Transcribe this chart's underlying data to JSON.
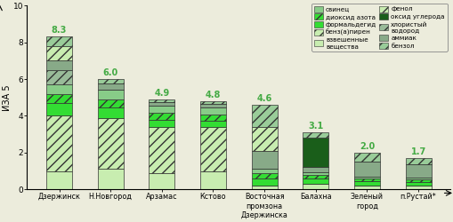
{
  "cities": [
    "Дзержинск",
    "Н.Новгород",
    "Арзамас",
    "Кстово",
    "Восточная\nпромзона\nДзержинска",
    "Балахна",
    "Зеленый\nгород",
    "п.Рустай*"
  ],
  "totals": [
    8.3,
    6.0,
    4.9,
    4.8,
    4.6,
    3.1,
    2.0,
    1.7
  ],
  "segment_order": [
    "взвешенные вещества",
    "бенз(а)пирен",
    "формальдегид",
    "диоксид азота",
    "свинец",
    "хлористый водород",
    "аммиак",
    "оксид углерода",
    "фенол",
    "бензол"
  ],
  "segments": {
    "взвешенные вещества": [
      1.0,
      1.1,
      0.9,
      1.0,
      0.2,
      0.3,
      0.2,
      0.2
    ],
    "бенз(а)пирен": [
      3.0,
      2.8,
      2.5,
      2.4,
      0.0,
      0.0,
      0.0,
      0.0
    ],
    "формальдегид": [
      0.7,
      0.55,
      0.4,
      0.35,
      0.4,
      0.3,
      0.25,
      0.2
    ],
    "диоксид азота": [
      0.5,
      0.45,
      0.35,
      0.3,
      0.3,
      0.2,
      0.15,
      0.15
    ],
    "свинец": [
      0.5,
      0.5,
      0.4,
      0.4,
      0.2,
      0.15,
      0.1,
      0.1
    ],
    "хлористый водород": [
      0.8,
      0.0,
      0.0,
      0.0,
      0.0,
      0.0,
      0.0,
      0.0
    ],
    "аммиак": [
      0.5,
      0.35,
      0.2,
      0.2,
      1.0,
      0.25,
      0.8,
      0.7
    ],
    "оксид углерода": [
      0.0,
      0.0,
      0.0,
      0.0,
      0.0,
      1.6,
      0.0,
      0.0
    ],
    "фенол": [
      0.8,
      0.0,
      0.0,
      0.0,
      1.3,
      0.0,
      0.0,
      0.0
    ],
    "бензол": [
      0.5,
      0.25,
      0.15,
      0.15,
      1.2,
      0.3,
      0.5,
      0.35
    ]
  },
  "colors": {
    "взвешенные вещества": "#c8edb0",
    "бенз(а)пирен": "#c8edb0",
    "формальдегид": "#33dd33",
    "диоксид азота": "#33dd33",
    "свинец": "#88cc88",
    "хлористый водород": "#99bb99",
    "аммиак": "#88aa88",
    "оксид углерода": "#1a5e1a",
    "фенол": "#c8edb0",
    "бензол": "#99cc99"
  },
  "hatches": {
    "взвешенные вещества": "",
    "бенз(а)пирен": "///",
    "формальдегид": "",
    "диоксид азота": "///",
    "свинец": "",
    "хлористый водород": "///",
    "аммиак": "",
    "оксид углерода": "",
    "фенол": "///",
    "бензол": "///"
  },
  "legend_left": [
    {
      "name": "свинец",
      "color": "#88cc88",
      "hatch": ""
    },
    {
      "name": "диоксид азота",
      "color": "#33dd33",
      "hatch": "///"
    },
    {
      "name": "формальдегид",
      "color": "#33dd33",
      "hatch": ""
    },
    {
      "name": "бенз(а)пирен",
      "color": "#c8edb0",
      "hatch": "///"
    },
    {
      "name": "взвешенные\nвещества",
      "color": "#c8edb0",
      "hatch": ""
    }
  ],
  "legend_right": [
    {
      "name": "фенол",
      "color": "#c8edb0",
      "hatch": "///"
    },
    {
      "name": "оксид углерода",
      "color": "#1a5e1a",
      "hatch": ""
    },
    {
      "name": "хлористый\nводород",
      "color": "#99bb99",
      "hatch": "///"
    },
    {
      "name": "аммиак",
      "color": "#88aa88",
      "hatch": ""
    },
    {
      "name": "бензол",
      "color": "#99cc99",
      "hatch": "///"
    }
  ],
  "ylim": [
    0,
    10
  ],
  "yticks": [
    0,
    2,
    4,
    6,
    8,
    10
  ],
  "ylabel": "ИЗА 5",
  "bg_color": "#ececdc",
  "bar_width": 0.5,
  "total_color": "#44aa44",
  "total_fontsize": 7
}
